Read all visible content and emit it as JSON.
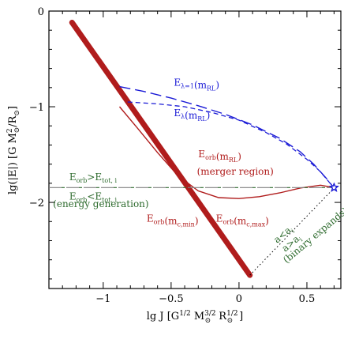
{
  "chart_data": {
    "type": "line",
    "xlabel": "lg J  [G^{1/2} M_{⊙}^{3/2} R_{⊙}^{1/2} ]",
    "ylabel": "lg(|E|)  [G M_{⊙}^{2}/R_{⊙}]",
    "xlim": [
      -1.4,
      0.75
    ],
    "ylim": [
      -2.9,
      0.0
    ],
    "x_ticks": [
      -1,
      -0.5,
      0,
      0.5
    ],
    "x_tick_labels": [
      "−1",
      "−0.5",
      "0",
      "0.5"
    ],
    "y_ticks": [
      0,
      -1,
      -2
    ],
    "y_tick_labels": [
      "0",
      "−1",
      "−2"
    ],
    "grid": false,
    "colors": {
      "blue": "#1a1ad6",
      "red": "#b01c1c",
      "green": "#2e6b2e",
      "gray": "#808080",
      "black": "#000000"
    },
    "series": [
      {
        "name": "",
        "style": "thick-band",
        "color": "#b01c1c",
        "x": [
          -1.23,
          0.08
        ],
        "y": [
          -0.12,
          -2.76
        ]
      },
      {
        "name": "",
        "style": "solid",
        "color": "#b01c1c",
        "x": [
          -0.88,
          -0.75,
          -0.6,
          -0.45,
          -0.3,
          -0.15,
          0.0,
          0.15,
          0.3,
          0.45,
          0.6,
          0.68
        ],
        "y": [
          -1.0,
          -1.22,
          -1.48,
          -1.72,
          -1.88,
          -1.95,
          -1.96,
          -1.94,
          -1.9,
          -1.85,
          -1.82,
          -1.84
        ]
      },
      {
        "name": "",
        "style": "long-dash",
        "color": "#1a1ad6",
        "x": [
          -0.88,
          -0.7,
          -0.5,
          -0.3,
          -0.1,
          0.1,
          0.3,
          0.45,
          0.55,
          0.65,
          0.7
        ],
        "y": [
          -0.79,
          -0.84,
          -0.91,
          -0.99,
          -1.08,
          -1.19,
          -1.33,
          -1.47,
          -1.6,
          -1.76,
          -1.85
        ]
      },
      {
        "name": "",
        "style": "short-dash",
        "color": "#1a1ad6",
        "x": [
          -0.82,
          -0.6,
          -0.4,
          -0.2,
          0.0,
          0.2,
          0.35,
          0.5,
          0.6,
          0.7
        ],
        "y": [
          -0.95,
          -0.97,
          -1.0,
          -1.06,
          -1.14,
          -1.27,
          -1.39,
          -1.55,
          -1.68,
          -1.85
        ]
      },
      {
        "name": "",
        "style": "long-dash-gray-green",
        "color": "#808080",
        "x": [
          -1.4,
          0.72
        ],
        "y": [
          -1.845,
          -1.845
        ]
      },
      {
        "name": "",
        "style": "dotted",
        "color": "#000000",
        "x": [
          0.08,
          0.7
        ],
        "y": [
          -2.76,
          -1.85
        ]
      }
    ],
    "points": [
      {
        "label": "",
        "shape": "star",
        "color": "#1a1ad6",
        "x": 0.7,
        "y": -1.845
      }
    ],
    "annotations": [
      {
        "text": "Eλ=1(mRL)",
        "color": "#1a1ad6",
        "x": -0.48,
        "y": -0.78
      },
      {
        "text": "Eλ(mRL)",
        "color": "#1a1ad6",
        "x": -0.48,
        "y": -1.1
      },
      {
        "text": "Eorb(mRL)",
        "color": "#b01c1c",
        "x": -0.3,
        "y": -1.53
      },
      {
        "text": "(merger region)",
        "color": "#b01c1c",
        "x": -0.31,
        "y": -1.71
      },
      {
        "text": "Eorb>Etot, i",
        "color": "#2e6b2e",
        "x": -1.25,
        "y": -1.77
      },
      {
        "text": "Eorb<Etot, i",
        "color": "#2e6b2e",
        "x": -1.25,
        "y": -1.97
      },
      {
        "text": "(energy generation)",
        "color": "#2e6b2e",
        "x": -1.37,
        "y": -2.05
      },
      {
        "text": "Eorb(mc,min)",
        "color": "#b01c1c",
        "x": -0.68,
        "y": -2.2
      },
      {
        "text": "Eorb(mc,max)",
        "color": "#b01c1c",
        "x": -0.17,
        "y": -2.2
      },
      {
        "text": "a<ai",
        "color": "#2e6b2e",
        "x": 0.28,
        "y": -2.43
      },
      {
        "text": "a>ai",
        "color": "#2e6b2e",
        "x": 0.34,
        "y": -2.52
      },
      {
        "text": "(binary expands)",
        "color": "#2e6b2e",
        "x": 0.35,
        "y": -2.64
      }
    ]
  }
}
